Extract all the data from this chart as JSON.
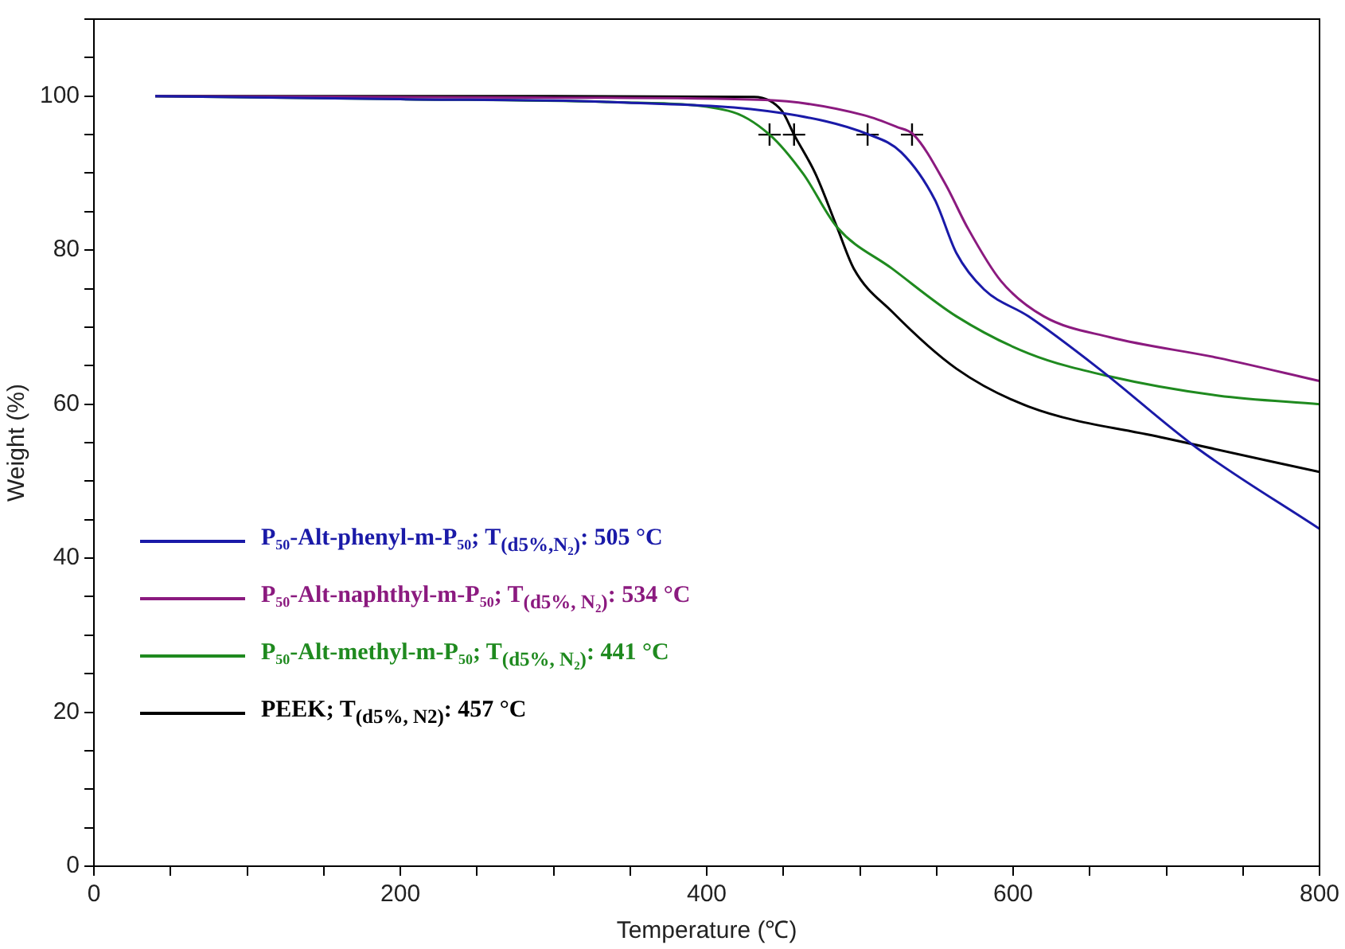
{
  "chart_data": {
    "type": "line",
    "xlabel": "Temperature (℃)",
    "ylabel": "Weight (%)",
    "xlim": [
      0,
      800
    ],
    "ylim": [
      0,
      110
    ],
    "xticks": [
      0,
      {
        "value": 50,
        "label": null
      },
      {
        "value": 100,
        "label": null
      },
      {
        "value": 150,
        "label": null
      },
      200,
      {
        "value": 250,
        "label": null
      },
      {
        "value": 300,
        "label": null
      },
      {
        "value": 350,
        "label": null
      },
      400,
      {
        "value": 450,
        "label": null
      },
      {
        "value": 500,
        "label": null
      },
      {
        "value": 550,
        "label": null
      },
      600,
      {
        "value": 650,
        "label": null
      },
      {
        "value": 700,
        "label": null
      },
      {
        "value": 750,
        "label": null
      },
      800
    ],
    "yticks": [
      0,
      {
        "value": 5,
        "label": null
      },
      {
        "value": 10,
        "label": null
      },
      {
        "value": 15,
        "label": null
      },
      20,
      {
        "value": 25,
        "label": null
      },
      {
        "value": 30,
        "label": null
      },
      {
        "value": 35,
        "label": null
      },
      40,
      {
        "value": 45,
        "label": null
      },
      {
        "value": 50,
        "label": null
      },
      {
        "value": 55,
        "label": null
      },
      60,
      {
        "value": 65,
        "label": null
      },
      {
        "value": 70,
        "label": null
      },
      {
        "value": 75,
        "label": null
      },
      80,
      {
        "value": 85,
        "label": null
      },
      {
        "value": 90,
        "label": null
      },
      {
        "value": 95,
        "label": null
      },
      100,
      {
        "value": 105,
        "label": null
      },
      {
        "value": 110,
        "label": null
      }
    ],
    "grid": false,
    "legend": "left",
    "line_style": "solid",
    "marker": "none",
    "series": [
      {
        "name": "P₅₀-Alt-phenyl-m-P₅₀; T$_{(d5%,N₂)}$: 505 °C",
        "color": "#1a1aa8",
        "x": [
          40,
          200,
          342,
          449,
          506,
          527,
          549,
          563,
          581,
          610,
          656,
          720,
          800
        ],
        "values": [
          100,
          99.6,
          99.2,
          97.8,
          95,
          92.7,
          86.5,
          79.6,
          74.9,
          71.4,
          64.6,
          54.3,
          43.8
        ]
      },
      {
        "name": "P₅₀-Alt-naphthyl-m-P₅₀; T$_{(d5%, N₂)}$: 534 °C",
        "color": "#8b1a7f",
        "x": [
          40,
          300,
          438,
          503,
          524,
          535,
          556,
          570,
          592,
          620,
          663,
          734,
          800
        ],
        "values": [
          100,
          99.8,
          99.5,
          97.5,
          96,
          95,
          88.5,
          83,
          76,
          71.4,
          68.7,
          66,
          63
        ]
      },
      {
        "name": "P₅₀-Alt-methyl-m-P₅₀; T$_{(d5%, N₂)}$: 441 °C",
        "color": "#1f8a1f",
        "x": [
          40,
          200,
          342,
          414,
          441,
          463,
          485,
          521,
          563,
          610,
          663,
          734,
          800
        ],
        "values": [
          100,
          99.6,
          99.2,
          98.1,
          95,
          89.9,
          83,
          77.6,
          71.4,
          66.6,
          63.6,
          61.1,
          60
        ]
      },
      {
        "name": "PEEK; T$_{(d5%, N2)}$: 457 °C",
        "color": "#000000",
        "x": [
          40,
          300,
          431,
          449,
          457,
          471,
          485,
          496,
          521,
          563,
          610,
          699,
          800
        ],
        "values": [
          100,
          100,
          99.9,
          98.1,
          95,
          89.9,
          83,
          77.6,
          72,
          64.6,
          59.7,
          55.6,
          51.2
        ]
      },
      {
        "type": "scatter",
        "color": "#000000",
        "marker": "cross",
        "x": [
          441,
          457,
          505,
          534
        ],
        "values": [
          95,
          95,
          95,
          95
        ]
      }
    ]
  }
}
